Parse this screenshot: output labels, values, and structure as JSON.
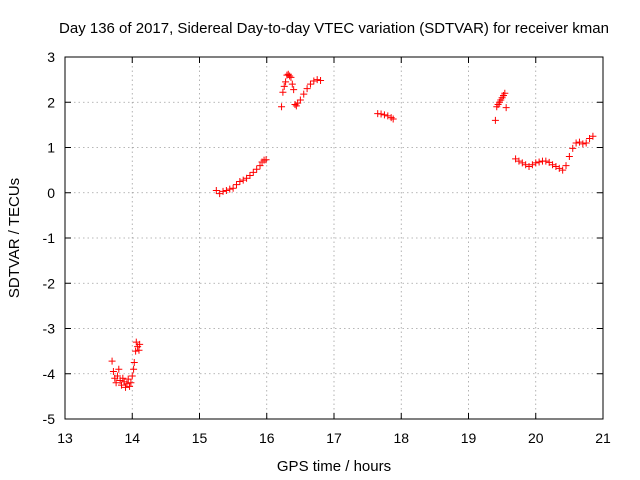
{
  "chart_data": {
    "type": "scatter",
    "title": "Day 136 of 2017, Sidereal Day-to-day VTEC variation (SDTVAR) for receiver kman",
    "xlabel": "GPS time / hours",
    "ylabel": "SDTVAR / TECUs",
    "xlim": [
      13,
      21
    ],
    "ylim": [
      -5,
      3
    ],
    "xticks": [
      13,
      14,
      15,
      16,
      17,
      18,
      19,
      20,
      21
    ],
    "yticks": [
      -5,
      -4,
      -3,
      -2,
      -1,
      0,
      1,
      2,
      3
    ],
    "grid": true,
    "marker": "+",
    "color": "#ff0000",
    "series": [
      {
        "name": "SDTVAR",
        "points": [
          [
            13.7,
            -3.72
          ],
          [
            13.72,
            -3.95
          ],
          [
            13.74,
            -4.1
          ],
          [
            13.76,
            -4.2
          ],
          [
            13.78,
            -4.05
          ],
          [
            13.8,
            -3.9
          ],
          [
            13.82,
            -4.15
          ],
          [
            13.84,
            -4.25
          ],
          [
            13.86,
            -4.1
          ],
          [
            13.88,
            -4.18
          ],
          [
            13.9,
            -4.3
          ],
          [
            13.92,
            -4.22
          ],
          [
            13.94,
            -4.12
          ],
          [
            13.96,
            -4.28
          ],
          [
            13.98,
            -4.2
          ],
          [
            14.0,
            -4.05
          ],
          [
            14.02,
            -3.9
          ],
          [
            14.03,
            -3.75
          ],
          [
            14.05,
            -3.5
          ],
          [
            14.06,
            -3.3
          ],
          [
            14.08,
            -3.4
          ],
          [
            14.1,
            -3.48
          ],
          [
            14.11,
            -3.35
          ],
          [
            15.25,
            0.05
          ],
          [
            15.3,
            -0.02
          ],
          [
            15.35,
            0.03
          ],
          [
            15.4,
            0.05
          ],
          [
            15.45,
            0.08
          ],
          [
            15.5,
            0.1
          ],
          [
            15.55,
            0.18
          ],
          [
            15.6,
            0.25
          ],
          [
            15.65,
            0.28
          ],
          [
            15.7,
            0.32
          ],
          [
            15.75,
            0.38
          ],
          [
            15.8,
            0.45
          ],
          [
            15.85,
            0.52
          ],
          [
            15.9,
            0.6
          ],
          [
            15.93,
            0.68
          ],
          [
            15.96,
            0.72
          ],
          [
            15.99,
            0.73
          ],
          [
            16.22,
            1.9
          ],
          [
            16.24,
            2.22
          ],
          [
            16.26,
            2.35
          ],
          [
            16.28,
            2.45
          ],
          [
            16.3,
            2.6
          ],
          [
            16.32,
            2.62
          ],
          [
            16.34,
            2.58
          ],
          [
            16.36,
            2.55
          ],
          [
            16.38,
            2.4
          ],
          [
            16.4,
            2.28
          ],
          [
            16.42,
            1.95
          ],
          [
            16.44,
            1.92
          ],
          [
            16.46,
            1.98
          ],
          [
            16.5,
            2.05
          ],
          [
            16.55,
            2.18
          ],
          [
            16.6,
            2.3
          ],
          [
            16.65,
            2.4
          ],
          [
            16.7,
            2.47
          ],
          [
            16.75,
            2.5
          ],
          [
            16.8,
            2.48
          ],
          [
            17.65,
            1.75
          ],
          [
            17.7,
            1.74
          ],
          [
            17.75,
            1.72
          ],
          [
            17.8,
            1.7
          ],
          [
            17.85,
            1.66
          ],
          [
            17.88,
            1.63
          ],
          [
            19.4,
            1.6
          ],
          [
            19.42,
            1.9
          ],
          [
            19.44,
            1.95
          ],
          [
            19.46,
            2.0
          ],
          [
            19.48,
            2.05
          ],
          [
            19.5,
            2.1
          ],
          [
            19.52,
            2.15
          ],
          [
            19.54,
            2.2
          ],
          [
            19.56,
            1.88
          ],
          [
            19.7,
            0.75
          ],
          [
            19.75,
            0.7
          ],
          [
            19.8,
            0.66
          ],
          [
            19.85,
            0.62
          ],
          [
            19.9,
            0.58
          ],
          [
            19.95,
            0.62
          ],
          [
            20.0,
            0.66
          ],
          [
            20.05,
            0.68
          ],
          [
            20.1,
            0.7
          ],
          [
            20.15,
            0.7
          ],
          [
            20.2,
            0.67
          ],
          [
            20.25,
            0.62
          ],
          [
            20.3,
            0.58
          ],
          [
            20.35,
            0.54
          ],
          [
            20.4,
            0.5
          ],
          [
            20.45,
            0.6
          ],
          [
            20.5,
            0.8
          ],
          [
            20.55,
            0.98
          ],
          [
            20.6,
            1.1
          ],
          [
            20.65,
            1.12
          ],
          [
            20.7,
            1.08
          ],
          [
            20.75,
            1.1
          ],
          [
            20.8,
            1.2
          ],
          [
            20.85,
            1.25
          ]
        ]
      }
    ]
  }
}
